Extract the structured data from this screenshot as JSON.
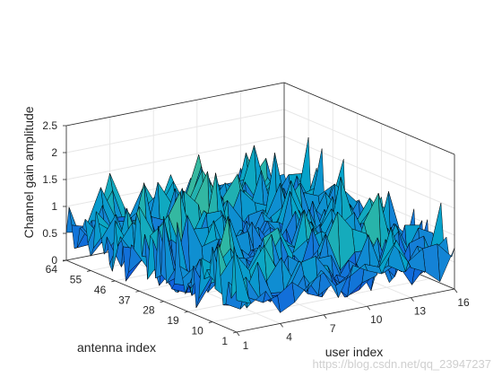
{
  "chart_data": {
    "type": "surface",
    "title": "",
    "xlabel": "user index",
    "ylabel": "antenna index",
    "zlabel": "Channel gain amplitude",
    "x_ticks": [
      "1",
      "4",
      "7",
      "10",
      "13",
      "16"
    ],
    "y_ticks": [
      "1",
      "10",
      "19",
      "28",
      "37",
      "46",
      "55",
      "64"
    ],
    "z_ticks": [
      "0",
      "0.5",
      "1",
      "1.5",
      "2",
      "2.5"
    ],
    "xlim": [
      1,
      16
    ],
    "ylim": [
      1,
      64
    ],
    "zlim": [
      0,
      2.5
    ],
    "grid": true,
    "colormap": "parula",
    "colormap_stops": [
      "#352a87",
      "#0f5cdd",
      "#1481d6",
      "#06a4ca",
      "#2eb7a4",
      "#87bf77",
      "#d1bb59",
      "#fbd228"
    ],
    "edge_color": "#000000",
    "surface_description": "Random channel gain amplitudes (Rayleigh-like), mostly between 0.2 and 1.5 with occasional peaks near 2.0"
  },
  "watermark": "https://blog.csdn.net/qq_23947237"
}
